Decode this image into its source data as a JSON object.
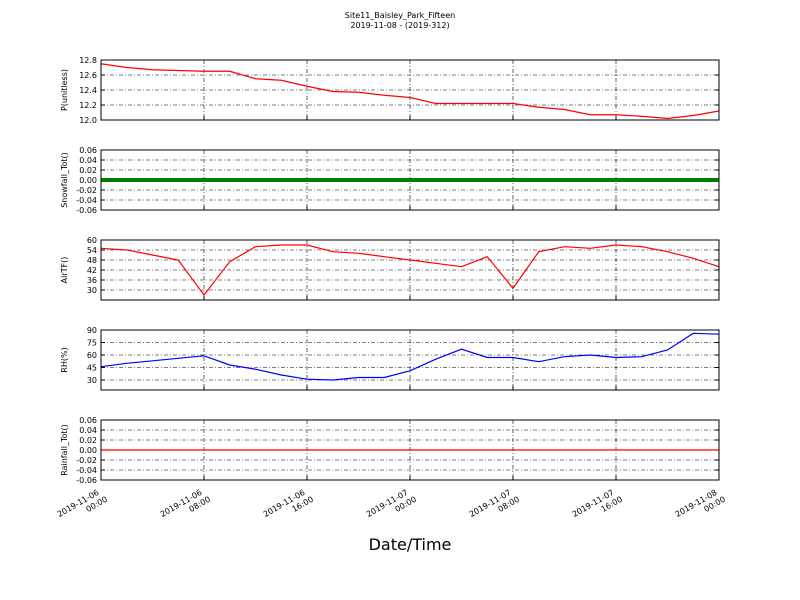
{
  "chart_data": {
    "type": "line",
    "title": "Site11_Baisley_Park_Fifteen",
    "subtitle": "2019-11-08 - (2019-312)",
    "xlabel": "Date/Time",
    "x": [
      "2019-11-06 00:00",
      "2019-11-06 02:00",
      "2019-11-06 04:00",
      "2019-11-06 06:00",
      "2019-11-06 08:00",
      "2019-11-06 10:00",
      "2019-11-06 12:00",
      "2019-11-06 14:00",
      "2019-11-06 16:00",
      "2019-11-06 18:00",
      "2019-11-06 20:00",
      "2019-11-06 22:00",
      "2019-11-07 00:00",
      "2019-11-07 02:00",
      "2019-11-07 04:00",
      "2019-11-07 06:00",
      "2019-11-07 08:00",
      "2019-11-07 10:00",
      "2019-11-07 12:00",
      "2019-11-07 14:00",
      "2019-11-07 16:00",
      "2019-11-07 18:00",
      "2019-11-07 20:00",
      "2019-11-07 22:00",
      "2019-11-08 00:00"
    ],
    "xlim": [
      "2019-11-06 00:00",
      "2019-11-08 00:00"
    ],
    "xticks": [
      "2019-11-06 00:00",
      "2019-11-06 08:00",
      "2019-11-06 16:00",
      "2019-11-07 00:00",
      "2019-11-07 08:00",
      "2019-11-07 16:00",
      "2019-11-08 00:00"
    ],
    "grid": true,
    "panels": [
      {
        "ylabel": "P(unitless)",
        "ylim": [
          12.0,
          12.8
        ],
        "yticks": [
          {
            "value": 12,
            "label": "12.0"
          },
          12.2,
          12.4,
          12.6,
          12.8
        ],
        "series": [
          {
            "name": "P",
            "color": "#ff0000",
            "values": [
              12.75,
              12.7,
              12.67,
              12.66,
              12.65,
              12.65,
              12.55,
              12.53,
              12.45,
              12.38,
              12.37,
              12.33,
              12.3,
              12.22,
              12.22,
              12.22,
              12.22,
              12.17,
              12.14,
              12.07,
              12.07,
              12.05,
              12.02,
              12.06,
              12.12
            ]
          }
        ]
      },
      {
        "ylabel": "Snowfall_Tot()",
        "ylim": [
          -0.06,
          0.06
        ],
        "yticks": [
          -0.06,
          -0.04,
          -0.02,
          {
            "value": 0,
            "label": "0.00"
          },
          0.02,
          0.04,
          0.06
        ],
        "series": [
          {
            "name": "Snowfall_Tot",
            "color": "#008000",
            "values": [
              0,
              0,
              0,
              0,
              0,
              0,
              0,
              0,
              0,
              0,
              0,
              0,
              0,
              0,
              0,
              0,
              0,
              0,
              0,
              0,
              0,
              0,
              0,
              0,
              0
            ]
          }
        ]
      },
      {
        "ylabel": "AirTF()",
        "ylim": [
          24,
          60
        ],
        "yticks": [
          30,
          36,
          42,
          48,
          54,
          60
        ],
        "series": [
          {
            "name": "AirTF",
            "color": "#ff0000",
            "values": [
              55,
              54,
              51,
              48,
              27,
              47,
              56,
              57,
              57,
              53,
              52,
              50,
              48,
              46,
              44,
              50,
              31,
              53,
              56,
              55,
              57,
              56,
              53,
              49,
              44
            ]
          }
        ]
      },
      {
        "ylabel": "RH(%)",
        "ylim": [
          18,
          90
        ],
        "yticks": [
          30,
          45,
          60,
          75,
          90
        ],
        "series": [
          {
            "name": "RH",
            "color": "#0000ff",
            "values": [
              46,
              50,
              53,
              56,
              59,
              48,
              43,
              36,
              31,
              30,
              33,
              33,
              41,
              55,
              67,
              57,
              57,
              52,
              58,
              60,
              57,
              58,
              66,
              86,
              85
            ]
          }
        ]
      },
      {
        "ylabel": "Rainfall_Tot()",
        "ylim": [
          -0.06,
          0.06
        ],
        "yticks": [
          -0.06,
          -0.04,
          -0.02,
          {
            "value": 0,
            "label": "0.00"
          },
          0.02,
          0.04,
          0.06
        ],
        "series": [
          {
            "name": "Rainfall_Tot",
            "color": "#ff0000",
            "values": [
              0,
              0,
              0,
              0,
              0,
              0,
              0,
              0,
              0,
              0,
              0,
              0,
              0,
              0,
              0,
              0,
              0,
              0,
              0,
              0,
              0,
              0,
              0,
              0,
              0
            ]
          }
        ]
      }
    ]
  }
}
